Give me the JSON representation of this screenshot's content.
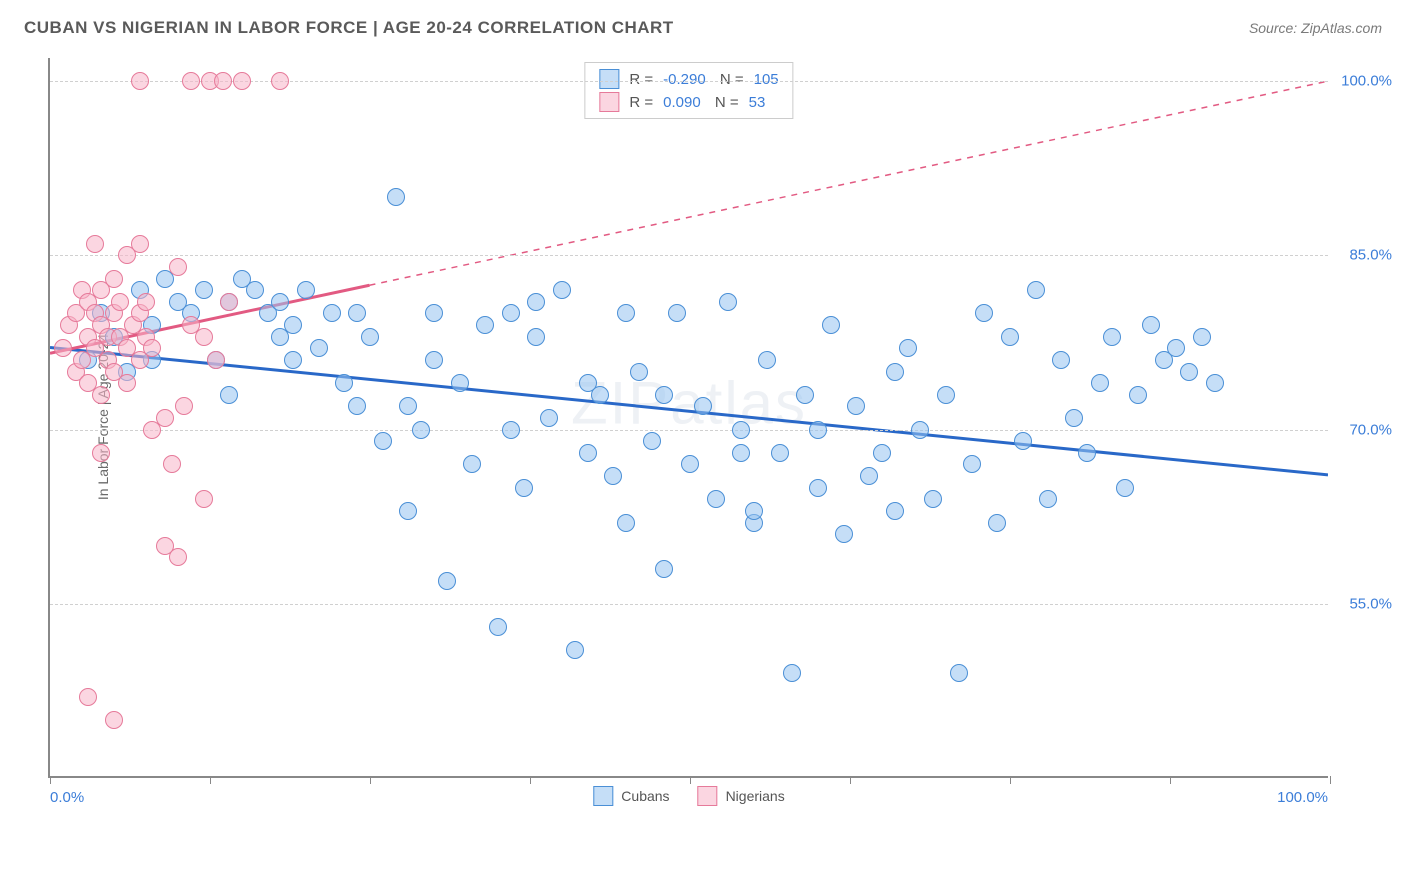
{
  "header": {
    "title": "CUBAN VS NIGERIAN IN LABOR FORCE | AGE 20-24 CORRELATION CHART",
    "source": "Source: ZipAtlas.com"
  },
  "chart": {
    "type": "scatter",
    "watermark": "ZIPatlas",
    "y_axis_title": "In Labor Force | Age 20-24",
    "background_color": "#ffffff",
    "grid_color": "#d0d0d0",
    "axis_color": "#888888",
    "xlim": [
      0,
      100
    ],
    "ylim": [
      40,
      102
    ],
    "x_labels": {
      "min": "0.0%",
      "max": "100.0%"
    },
    "x_tick_positions": [
      0,
      12.5,
      25,
      37.5,
      50,
      62.5,
      75,
      87.5,
      100
    ],
    "y_ticks": [
      {
        "value": 55,
        "label": "55.0%"
      },
      {
        "value": 70,
        "label": "70.0%"
      },
      {
        "value": 85,
        "label": "85.0%"
      },
      {
        "value": 100,
        "label": "100.0%"
      }
    ],
    "series": [
      {
        "name": "Cubans",
        "color_fill": "rgba(150,195,240,0.55)",
        "color_stroke": "#4a8fd6",
        "trend_color": "#2968c8",
        "trend_solid": true,
        "trend_y_start": 77,
        "trend_y_end": 66,
        "stats": {
          "R": "-0.290",
          "N": "105"
        },
        "points": [
          [
            3,
            76
          ],
          [
            4,
            80
          ],
          [
            5,
            78
          ],
          [
            6,
            75
          ],
          [
            7,
            82
          ],
          [
            8,
            79
          ],
          [
            9,
            83
          ],
          [
            10,
            81
          ],
          [
            11,
            80
          ],
          [
            12,
            82
          ],
          [
            13,
            76
          ],
          [
            14,
            81
          ],
          [
            15,
            83
          ],
          [
            16,
            82
          ],
          [
            17,
            80
          ],
          [
            18,
            81
          ],
          [
            19,
            79
          ],
          [
            20,
            82
          ],
          [
            21,
            77
          ],
          [
            22,
            80
          ],
          [
            23,
            74
          ],
          [
            24,
            72
          ],
          [
            25,
            78
          ],
          [
            26,
            69
          ],
          [
            27,
            90
          ],
          [
            28,
            63
          ],
          [
            29,
            70
          ],
          [
            30,
            76
          ],
          [
            31,
            57
          ],
          [
            32,
            74
          ],
          [
            33,
            67
          ],
          [
            34,
            79
          ],
          [
            35,
            53
          ],
          [
            36,
            80
          ],
          [
            37,
            65
          ],
          [
            38,
            78
          ],
          [
            39,
            71
          ],
          [
            40,
            82
          ],
          [
            41,
            51
          ],
          [
            42,
            68
          ],
          [
            43,
            73
          ],
          [
            44,
            66
          ],
          [
            45,
            62
          ],
          [
            46,
            75
          ],
          [
            47,
            69
          ],
          [
            48,
            58
          ],
          [
            49,
            80
          ],
          [
            50,
            67
          ],
          [
            51,
            72
          ],
          [
            52,
            64
          ],
          [
            53,
            81
          ],
          [
            54,
            70
          ],
          [
            55,
            62
          ],
          [
            56,
            76
          ],
          [
            57,
            68
          ],
          [
            58,
            49
          ],
          [
            59,
            73
          ],
          [
            60,
            65
          ],
          [
            61,
            79
          ],
          [
            62,
            61
          ],
          [
            63,
            72
          ],
          [
            64,
            66
          ],
          [
            65,
            68
          ],
          [
            66,
            63
          ],
          [
            67,
            77
          ],
          [
            68,
            70
          ],
          [
            69,
            64
          ],
          [
            70,
            73
          ],
          [
            71,
            49
          ],
          [
            72,
            67
          ],
          [
            73,
            80
          ],
          [
            74,
            62
          ],
          [
            75,
            78
          ],
          [
            76,
            69
          ],
          [
            77,
            82
          ],
          [
            78,
            64
          ],
          [
            79,
            76
          ],
          [
            80,
            71
          ],
          [
            81,
            68
          ],
          [
            82,
            74
          ],
          [
            83,
            78
          ],
          [
            84,
            65
          ],
          [
            85,
            73
          ],
          [
            86,
            79
          ],
          [
            87,
            76
          ],
          [
            88,
            77
          ],
          [
            89,
            75
          ],
          [
            90,
            78
          ],
          [
            91,
            74
          ],
          [
            55,
            63
          ],
          [
            45,
            80
          ],
          [
            38,
            81
          ],
          [
            28,
            72
          ],
          [
            18,
            78
          ],
          [
            8,
            76
          ],
          [
            14,
            73
          ],
          [
            19,
            76
          ],
          [
            24,
            80
          ],
          [
            30,
            80
          ],
          [
            36,
            70
          ],
          [
            42,
            74
          ],
          [
            48,
            73
          ],
          [
            54,
            68
          ],
          [
            60,
            70
          ],
          [
            66,
            75
          ]
        ]
      },
      {
        "name": "Nigerians",
        "color_fill": "rgba(248,180,200,0.55)",
        "color_stroke": "#e67a9a",
        "trend_color": "#e25a82",
        "trend_solid": false,
        "trend_y_start": 76.5,
        "trend_y_end": 100,
        "stats": {
          "R": "0.090",
          "N": "53"
        },
        "points": [
          [
            1,
            77
          ],
          [
            1.5,
            79
          ],
          [
            2,
            75
          ],
          [
            2,
            80
          ],
          [
            2.5,
            76
          ],
          [
            2.5,
            82
          ],
          [
            3,
            74
          ],
          [
            3,
            78
          ],
          [
            3,
            81
          ],
          [
            3.5,
            77
          ],
          [
            3.5,
            80
          ],
          [
            3.5,
            86
          ],
          [
            4,
            73
          ],
          [
            4,
            79
          ],
          [
            4,
            82
          ],
          [
            4.5,
            76
          ],
          [
            4.5,
            78
          ],
          [
            5,
            75
          ],
          [
            5,
            80
          ],
          [
            5,
            83
          ],
          [
            5.5,
            78
          ],
          [
            5.5,
            81
          ],
          [
            6,
            74
          ],
          [
            6,
            77
          ],
          [
            6,
            85
          ],
          [
            6.5,
            79
          ],
          [
            7,
            76
          ],
          [
            7,
            80
          ],
          [
            7,
            86
          ],
          [
            7.5,
            78
          ],
          [
            7.5,
            81
          ],
          [
            8,
            70
          ],
          [
            8,
            77
          ],
          [
            9,
            60
          ],
          [
            9,
            71
          ],
          [
            9.5,
            67
          ],
          [
            10,
            59
          ],
          [
            10,
            84
          ],
          [
            10.5,
            72
          ],
          [
            11,
            79
          ],
          [
            11,
            100
          ],
          [
            12,
            64
          ],
          [
            12,
            78
          ],
          [
            12.5,
            100
          ],
          [
            13,
            76
          ],
          [
            13.5,
            100
          ],
          [
            14,
            81
          ],
          [
            15,
            100
          ],
          [
            4,
            68
          ],
          [
            3,
            47
          ],
          [
            5,
            45
          ],
          [
            7,
            100
          ],
          [
            18,
            100
          ]
        ]
      }
    ],
    "stats_box": {
      "rows": [
        {
          "swatch": "blue",
          "R": "-0.290",
          "N": "105"
        },
        {
          "swatch": "pink",
          "R": "0.090",
          "N": "53"
        }
      ]
    },
    "legend": [
      {
        "swatch": "blue",
        "label": "Cubans"
      },
      {
        "swatch": "pink",
        "label": "Nigerians"
      }
    ]
  }
}
